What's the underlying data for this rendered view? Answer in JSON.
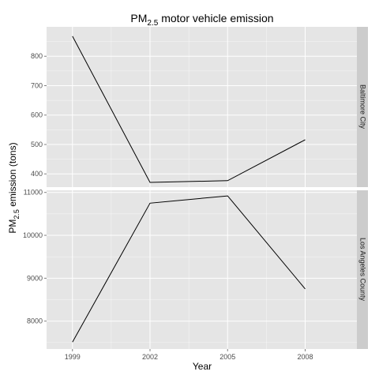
{
  "chart_data": {
    "type": "line",
    "title": {
      "main": "PM",
      "sub": "2.5",
      "rest": " motor vehicle emission"
    },
    "xlabel": "Year",
    "ylabel": {
      "main": "PM",
      "sub": "2.5",
      "rest": " emission (tons)"
    },
    "x": [
      1999,
      2002,
      2005,
      2008
    ],
    "xlim": [
      1998,
      2010
    ],
    "grid": true,
    "panels": [
      {
        "name": "Baltimore City",
        "values": [
          868,
          371,
          377,
          516
        ],
        "ylim": [
          355,
          900
        ],
        "yticks": [
          400,
          500,
          600,
          700,
          800
        ],
        "ytick_labels": [
          "400",
          "500",
          "600",
          "700",
          "800"
        ]
      },
      {
        "name": "Los Angeles County",
        "values": [
          7510,
          10750,
          10920,
          8750
        ],
        "ylim": [
          7350,
          11050
        ],
        "yticks": [
          8000,
          9000,
          10000,
          11000
        ],
        "ytick_labels": [
          "8000",
          "9000",
          "10000",
          "11000"
        ]
      }
    ],
    "xtick_labels": [
      "1999",
      "2002",
      "2005",
      "2008"
    ],
    "colors": {
      "panel_bg": "#e5e5e5",
      "grid": "#ffffff",
      "strip_bg": "#cccccc",
      "line": "#000000"
    }
  }
}
